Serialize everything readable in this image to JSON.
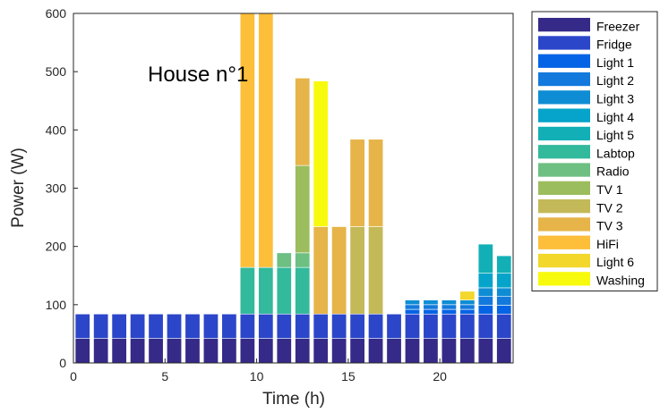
{
  "chart_data": {
    "type": "bar",
    "stacked": true,
    "xlabel": "Time (h)",
    "ylabel": "Power (W)",
    "xlim": [
      0,
      24
    ],
    "ylim": [
      0,
      600
    ],
    "xticks": [
      0,
      5,
      10,
      15,
      20
    ],
    "yticks": [
      0,
      100,
      200,
      300,
      400,
      500,
      600
    ],
    "grid": false,
    "legend_position": "outside-right",
    "annotation": "House n°1",
    "x": [
      0.5,
      1.5,
      2.5,
      3.5,
      4.5,
      5.5,
      6.5,
      7.5,
      8.5,
      9.5,
      10.5,
      11.5,
      12.5,
      13.5,
      14.5,
      15.5,
      16.5,
      17.5,
      18.5,
      19.5,
      20.5,
      21.5,
      22.5,
      23.5
    ],
    "series": [
      {
        "name": "Freezer",
        "color": "#352a87",
        "values": [
          42,
          42,
          42,
          42,
          42,
          42,
          42,
          42,
          42,
          42,
          42,
          42,
          42,
          42,
          42,
          42,
          42,
          42,
          42,
          42,
          42,
          42,
          42,
          42
        ]
      },
      {
        "name": "Fridge",
        "color": "#2c46c9",
        "values": [
          42,
          42,
          42,
          42,
          42,
          42,
          42,
          42,
          42,
          42,
          42,
          42,
          42,
          42,
          42,
          42,
          42,
          42,
          42,
          42,
          42,
          42,
          42,
          42
        ]
      },
      {
        "name": "Light 1",
        "color": "#0563e6",
        "values": [
          0,
          0,
          0,
          0,
          0,
          0,
          0,
          0,
          0,
          0,
          0,
          0,
          0,
          0,
          0,
          0,
          0,
          0,
          8,
          8,
          8,
          8,
          15,
          15
        ]
      },
      {
        "name": "Light 2",
        "color": "#1379dc",
        "values": [
          0,
          0,
          0,
          0,
          0,
          0,
          0,
          0,
          0,
          0,
          0,
          0,
          0,
          0,
          0,
          0,
          0,
          0,
          8,
          8,
          8,
          8,
          15,
          15
        ]
      },
      {
        "name": "Light 3",
        "color": "#0f8dd4",
        "values": [
          0,
          0,
          0,
          0,
          0,
          0,
          0,
          0,
          0,
          0,
          0,
          0,
          0,
          0,
          0,
          0,
          0,
          0,
          8,
          8,
          8,
          8,
          15,
          15
        ]
      },
      {
        "name": "Light 4",
        "color": "#06a4ca",
        "values": [
          0,
          0,
          0,
          0,
          0,
          0,
          0,
          0,
          0,
          0,
          0,
          0,
          0,
          0,
          0,
          0,
          0,
          0,
          0,
          0,
          0,
          0,
          25,
          25
        ]
      },
      {
        "name": "Light 5",
        "color": "#12b0b6",
        "values": [
          0,
          0,
          0,
          0,
          0,
          0,
          0,
          0,
          0,
          0,
          0,
          0,
          0,
          0,
          0,
          0,
          0,
          0,
          0,
          0,
          0,
          0,
          50,
          30
        ]
      },
      {
        "name": "Labtop",
        "color": "#33b99c",
        "values": [
          0,
          0,
          0,
          0,
          0,
          0,
          0,
          0,
          0,
          80,
          80,
          80,
          80,
          0,
          0,
          0,
          0,
          0,
          0,
          0,
          0,
          0,
          0,
          0
        ]
      },
      {
        "name": "Radio",
        "color": "#6dbf82",
        "values": [
          0,
          0,
          0,
          0,
          0,
          0,
          0,
          0,
          0,
          0,
          0,
          25,
          25,
          0,
          0,
          0,
          0,
          0,
          0,
          0,
          0,
          0,
          0,
          0
        ]
      },
      {
        "name": "TV 1",
        "color": "#9cbd5e",
        "values": [
          0,
          0,
          0,
          0,
          0,
          0,
          0,
          0,
          0,
          0,
          0,
          0,
          150,
          0,
          0,
          0,
          0,
          0,
          0,
          0,
          0,
          0,
          0,
          0
        ]
      },
      {
        "name": "TV 2",
        "color": "#c3b958",
        "values": [
          0,
          0,
          0,
          0,
          0,
          0,
          0,
          0,
          0,
          0,
          0,
          0,
          0,
          0,
          0,
          150,
          150,
          0,
          0,
          0,
          0,
          0,
          0,
          0
        ]
      },
      {
        "name": "TV 3",
        "color": "#e6b449",
        "values": [
          0,
          0,
          0,
          0,
          0,
          0,
          0,
          0,
          0,
          0,
          0,
          0,
          150,
          150,
          150,
          150,
          150,
          0,
          0,
          0,
          0,
          0,
          0,
          0
        ]
      },
      {
        "name": "HiFi",
        "color": "#fdbe3a",
        "values": [
          0,
          0,
          0,
          0,
          0,
          0,
          0,
          0,
          0,
          440,
          440,
          0,
          0,
          0,
          0,
          0,
          0,
          0,
          0,
          0,
          0,
          0,
          0,
          0
        ]
      },
      {
        "name": "Light 6",
        "color": "#f3d72a",
        "values": [
          0,
          0,
          0,
          0,
          0,
          0,
          0,
          0,
          0,
          0,
          0,
          0,
          0,
          0,
          0,
          0,
          0,
          0,
          0,
          0,
          0,
          15,
          0,
          0
        ]
      },
      {
        "name": "Washing",
        "color": "#f8fa0d",
        "values": [
          0,
          0,
          0,
          0,
          0,
          0,
          0,
          0,
          0,
          0,
          0,
          0,
          0,
          250,
          0,
          0,
          0,
          0,
          0,
          0,
          0,
          0,
          0,
          0
        ]
      }
    ]
  }
}
